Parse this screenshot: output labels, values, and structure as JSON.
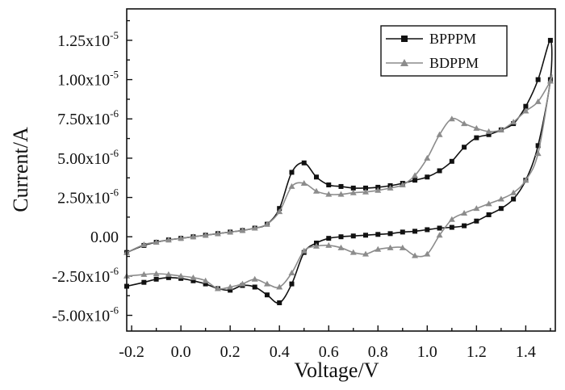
{
  "chart_data": {
    "type": "line",
    "xlabel": "Voltage/V",
    "ylabel": "Current/A",
    "xlim": [
      -0.22,
      1.52
    ],
    "ylim": [
      -6e-06,
      1.45e-05
    ],
    "x_ticks": [
      -0.2,
      0.0,
      0.2,
      0.4,
      0.6,
      0.8,
      1.0,
      1.2,
      1.4
    ],
    "x_tick_labels": [
      "-0.2",
      "0.0",
      "0.2",
      "0.4",
      "0.6",
      "0.8",
      "1.0",
      "1.2",
      "1.4"
    ],
    "x_minor_ticks": [
      -0.1,
      0.1,
      0.3,
      0.5,
      0.7,
      0.9,
      1.1,
      1.3,
      1.5
    ],
    "y_ticks": [
      -5e-06,
      -2.5e-06,
      0,
      2.5e-06,
      5e-06,
      7.5e-06,
      1e-05,
      1.25e-05
    ],
    "y_tick_mantissas": [
      "-5.00x10",
      "-2.50x10",
      "0.00",
      "2.50x10",
      "5.00x10",
      "7.50x10",
      "1.00x10",
      "1.25x10"
    ],
    "y_tick_exponents": [
      "-6",
      "-6",
      "",
      "-6",
      "-6",
      "-6",
      "-5",
      "-5"
    ],
    "grid": false,
    "legend_position": "top-right",
    "series": [
      {
        "name": "BPPPM",
        "color": "#111111",
        "marker": "square",
        "x": [
          -0.22,
          -0.15,
          -0.1,
          -0.05,
          0.0,
          0.05,
          0.1,
          0.15,
          0.2,
          0.25,
          0.3,
          0.35,
          0.4,
          0.45,
          0.5,
          0.55,
          0.6,
          0.65,
          0.7,
          0.75,
          0.8,
          0.85,
          0.9,
          0.95,
          1.0,
          1.05,
          1.1,
          1.15,
          1.2,
          1.25,
          1.3,
          1.35,
          1.4,
          1.45,
          1.5,
          1.5,
          1.45,
          1.4,
          1.35,
          1.3,
          1.25,
          1.2,
          1.15,
          1.1,
          1.05,
          1.0,
          0.95,
          0.9,
          0.85,
          0.8,
          0.75,
          0.7,
          0.65,
          0.6,
          0.55,
          0.5,
          0.45,
          0.4,
          0.35,
          0.3,
          0.25,
          0.2,
          0.15,
          0.1,
          0.05,
          0.0,
          -0.05,
          -0.1,
          -0.15,
          -0.22
        ],
        "y": [
          -1e-06,
          -5.5e-07,
          -3.5e-07,
          -2e-07,
          -1e-07,
          0.0,
          1e-07,
          2e-07,
          3e-07,
          4e-07,
          5.5e-07,
          8e-07,
          1.8e-06,
          4.1e-06,
          4.7e-06,
          3.8e-06,
          3.3e-06,
          3.2e-06,
          3.1e-06,
          3.1e-06,
          3.15e-06,
          3.25e-06,
          3.4e-06,
          3.6e-06,
          3.8e-06,
          4.2e-06,
          4.8e-06,
          5.7e-06,
          6.3e-06,
          6.5e-06,
          6.8e-06,
          7.2e-06,
          8.3e-06,
          1e-05,
          1.25e-05,
          1e-05,
          5.8e-06,
          3.6e-06,
          2.4e-06,
          1.8e-06,
          1.4e-06,
          1e-06,
          7e-07,
          6e-07,
          5.5e-07,
          4.5e-07,
          3.5e-07,
          3e-07,
          2e-07,
          1.5e-07,
          1e-07,
          5e-08,
          0.0,
          -1e-07,
          -4e-07,
          -1e-06,
          -3e-06,
          -4.2e-06,
          -3.7e-06,
          -3.2e-06,
          -3.1e-06,
          -3.4e-06,
          -3.3e-06,
          -3e-06,
          -2.8e-06,
          -2.65e-06,
          -2.6e-06,
          -2.7e-06,
          -2.9e-06,
          -3.15e-06
        ]
      },
      {
        "name": "BDPPM",
        "color": "#8c8c8c",
        "marker": "triangle",
        "x": [
          -0.22,
          -0.15,
          -0.1,
          -0.05,
          0.0,
          0.05,
          0.1,
          0.15,
          0.2,
          0.25,
          0.3,
          0.35,
          0.4,
          0.45,
          0.5,
          0.55,
          0.6,
          0.65,
          0.7,
          0.75,
          0.8,
          0.85,
          0.9,
          0.95,
          1.0,
          1.05,
          1.1,
          1.15,
          1.2,
          1.25,
          1.3,
          1.35,
          1.4,
          1.45,
          1.5,
          1.5,
          1.45,
          1.4,
          1.35,
          1.3,
          1.25,
          1.2,
          1.15,
          1.1,
          1.05,
          1.0,
          0.95,
          0.9,
          0.85,
          0.8,
          0.75,
          0.7,
          0.65,
          0.6,
          0.55,
          0.5,
          0.45,
          0.4,
          0.35,
          0.3,
          0.25,
          0.2,
          0.15,
          0.1,
          0.05,
          0.0,
          -0.05,
          -0.1,
          -0.15,
          -0.22
        ],
        "y": [
          -1e-06,
          -5e-07,
          -3.5e-07,
          -2e-07,
          -1e-07,
          0.0,
          1e-07,
          2e-07,
          3e-07,
          4e-07,
          5.5e-07,
          8e-07,
          1.6e-06,
          3.2e-06,
          3.4e-06,
          2.9e-06,
          2.7e-06,
          2.7e-06,
          2.8e-06,
          2.85e-06,
          2.95e-06,
          3.1e-06,
          3.3e-06,
          3.9e-06,
          5e-06,
          6.5e-06,
          7.5e-06,
          7.2e-06,
          6.9e-06,
          6.7e-06,
          6.8e-06,
          7.3e-06,
          8e-06,
          8.6e-06,
          9.9e-06,
          9.9e-06,
          5.3e-06,
          3.6e-06,
          2.8e-06,
          2.4e-06,
          2.1e-06,
          1.8e-06,
          1.5e-06,
          1.1e-06,
          1e-07,
          -1.1e-06,
          -1.2e-06,
          -7e-07,
          -7e-07,
          -8e-07,
          -1.1e-06,
          -1e-06,
          -7e-07,
          -5.5e-07,
          -6e-07,
          -9e-07,
          -2.3e-06,
          -3.2e-06,
          -3e-06,
          -2.7e-06,
          -3e-06,
          -3.2e-06,
          -3.3e-06,
          -2.8e-06,
          -2.6e-06,
          -2.5e-06,
          -2.4e-06,
          -2.35e-06,
          -2.4e-06,
          -2.5e-06
        ]
      }
    ]
  }
}
